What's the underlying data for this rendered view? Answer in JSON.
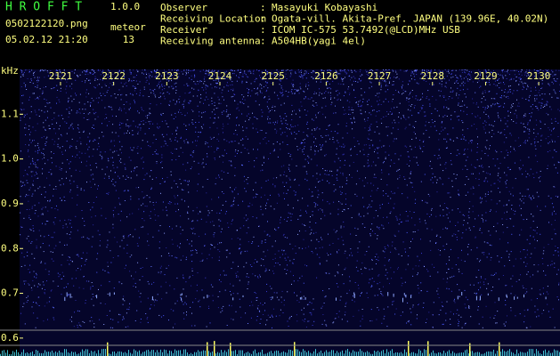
{
  "header": {
    "app_name": "H R O F F T",
    "version": "1.0.0",
    "file_name": "0502122120.png",
    "meteor_label": "meteor",
    "date_time": "05.02.12 21:20",
    "meteor_count": "13",
    "fields": [
      {
        "label": "Observer",
        "value": "Masayuki Kobayashi"
      },
      {
        "label": "Receiving Location",
        "value": "Ogata-vill. Akita-Pref. JAPAN (139.96E, 40.02N)"
      },
      {
        "label": "Receiver",
        "value": "ICOM IC-575 53.7492(@LCD)MHz USB"
      },
      {
        "label": "Receiving antenna",
        "value": "A504HB(yagi 4el)"
      }
    ]
  },
  "spectrogram": {
    "y_unit": "kHz",
    "ylim": [
      0.56,
      1.2
    ],
    "yticks": [
      0.6,
      0.7,
      0.8,
      0.9,
      {
        "value": 1,
        "label": "1.0"
      },
      1.1
    ],
    "xlim": [
      2120.23,
      2130.4
    ],
    "xticks": [
      2121,
      2122,
      2123,
      2124,
      2125,
      2126,
      2127,
      2128,
      2129,
      2130
    ]
  }
}
